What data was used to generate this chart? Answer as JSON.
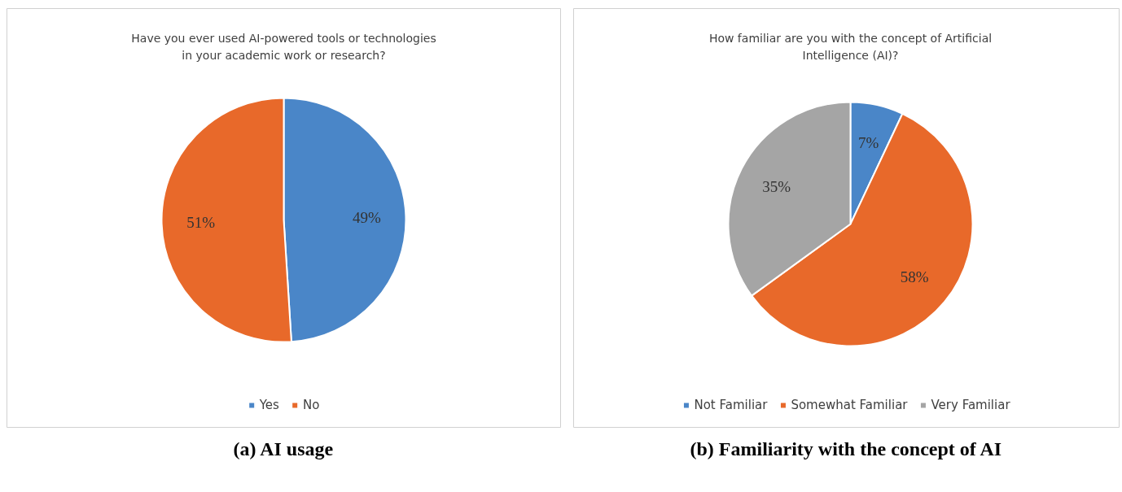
{
  "chart_data": [
    {
      "type": "pie",
      "title": "Have you ever used AI-powered tools or technologies in your academic work or research?",
      "categories": [
        "Yes",
        "No"
      ],
      "values": [
        49,
        51
      ],
      "colors": [
        "#4a86c8",
        "#e8692a"
      ],
      "value_labels": [
        "49%",
        "51%"
      ],
      "legend": "bottom",
      "annotations": [
        "(a) AI usage"
      ]
    },
    {
      "type": "pie",
      "title": "How familiar are you with the concept of Artificial Intelligence (AI)?",
      "categories": [
        "Not Familiar",
        "Somewhat Familiar",
        "Very Familiar"
      ],
      "values": [
        7,
        58,
        35
      ],
      "colors": [
        "#4a86c8",
        "#e8692a",
        "#a5a5a5"
      ],
      "value_labels": [
        "7%",
        "58%",
        "35%"
      ],
      "legend": "bottom",
      "annotations": [
        "(b) Familiarity with the concept of AI"
      ]
    }
  ]
}
